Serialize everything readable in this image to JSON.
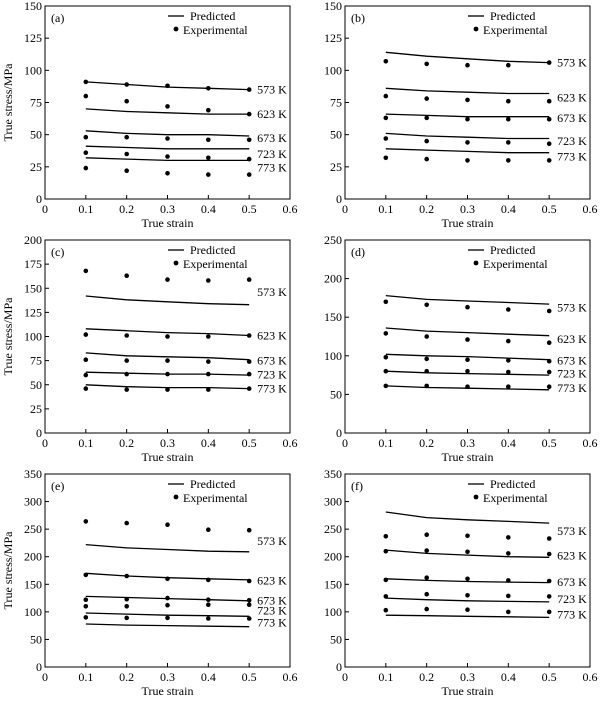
{
  "chart_data": [
    {
      "panel": "(a)",
      "type": "line",
      "xlabel": "True strain",
      "ylabel": "True stress/MPa",
      "xlim": [
        0,
        0.6
      ],
      "ylim": [
        0,
        150
      ],
      "xticks": [
        "0",
        "0.1",
        "0.2",
        "0.3",
        "0.4",
        "0.5",
        "0.6"
      ],
      "yticks": [
        "0",
        "25",
        "50",
        "75",
        "100",
        "125",
        "150"
      ],
      "legend": {
        "line_label": "Predicted",
        "dot_label": "Experimental"
      },
      "x": [
        0.1,
        0.2,
        0.3,
        0.4,
        0.5
      ],
      "series": [
        {
          "name": "573 K",
          "predicted": [
            91,
            89,
            87,
            86,
            85
          ],
          "experimental": [
            91,
            89,
            88,
            86,
            85
          ]
        },
        {
          "name": "623 K",
          "predicted": [
            70,
            68,
            67,
            66,
            66
          ],
          "experimental": [
            80,
            76,
            72,
            69,
            66
          ]
        },
        {
          "name": "673 K",
          "predicted": [
            53,
            51,
            50,
            50,
            49
          ],
          "experimental": [
            48,
            48,
            47,
            46,
            46
          ]
        },
        {
          "name": "723 K",
          "predicted": [
            41,
            40,
            39,
            39,
            39
          ],
          "experimental": [
            36,
            35,
            33,
            32,
            31
          ]
        },
        {
          "name": "773 K",
          "predicted": [
            32,
            31,
            30,
            30,
            30
          ],
          "experimental": [
            24,
            22,
            20,
            19,
            19
          ]
        }
      ]
    },
    {
      "panel": "(b)",
      "type": "line",
      "xlabel": "True strain",
      "ylabel": "",
      "xlim": [
        0,
        0.6
      ],
      "ylim": [
        0,
        150
      ],
      "xticks": [
        "0",
        "0.1",
        "0.2",
        "0.3",
        "0.4",
        "0.5",
        "0.6"
      ],
      "yticks": [
        "0",
        "25",
        "50",
        "75",
        "100",
        "125",
        "150"
      ],
      "legend": {
        "line_label": "Predicted",
        "dot_label": "Experimental"
      },
      "x": [
        0.1,
        0.2,
        0.3,
        0.4,
        0.5
      ],
      "series": [
        {
          "name": "573 K",
          "predicted": [
            114,
            111,
            109,
            107,
            106
          ],
          "experimental": [
            107,
            105,
            104,
            104,
            106
          ]
        },
        {
          "name": "623 K",
          "predicted": [
            86,
            84,
            83,
            82,
            82
          ],
          "experimental": [
            80,
            78,
            77,
            76,
            76
          ]
        },
        {
          "name": "673 K",
          "predicted": [
            66,
            65,
            64,
            64,
            64
          ],
          "experimental": [
            63,
            63,
            62,
            62,
            62
          ]
        },
        {
          "name": "723 K",
          "predicted": [
            51,
            49,
            48,
            47,
            47
          ],
          "experimental": [
            47,
            45,
            44,
            44,
            43
          ]
        },
        {
          "name": "773 K",
          "predicted": [
            39,
            38,
            37,
            36,
            36
          ],
          "experimental": [
            32,
            31,
            30,
            30,
            30
          ]
        }
      ]
    },
    {
      "panel": "(c)",
      "type": "line",
      "xlabel": "True strain",
      "ylabel": "True stress/MPa",
      "xlim": [
        0,
        0.6
      ],
      "ylim": [
        0,
        200
      ],
      "xticks": [
        "0",
        "0.1",
        "0.2",
        "0.3",
        "0.4",
        "0.5",
        "0.6"
      ],
      "yticks": [
        "0",
        "25",
        "50",
        "75",
        "100",
        "125",
        "150",
        "175",
        "200"
      ],
      "legend": {
        "line_label": "Predicted",
        "dot_label": "Experimental"
      },
      "x": [
        0.1,
        0.2,
        0.3,
        0.4,
        0.5
      ],
      "series": [
        {
          "name": "573 K",
          "predicted": [
            142,
            138,
            136,
            134,
            133
          ],
          "experimental": [
            168,
            163,
            159,
            158,
            159
          ]
        },
        {
          "name": "623 K",
          "predicted": [
            108,
            106,
            104,
            103,
            101
          ],
          "experimental": [
            102,
            101,
            100,
            100,
            101
          ]
        },
        {
          "name": "673 K",
          "predicted": [
            83,
            80,
            79,
            78,
            76
          ],
          "experimental": [
            76,
            75,
            75,
            74,
            74
          ]
        },
        {
          "name": "723 K",
          "predicted": [
            63,
            62,
            61,
            61,
            60
          ],
          "experimental": [
            60,
            61,
            61,
            61,
            61
          ]
        },
        {
          "name": "773 K",
          "predicted": [
            50,
            48,
            47,
            47,
            46
          ],
          "experimental": [
            46,
            45,
            45,
            45,
            46
          ]
        }
      ]
    },
    {
      "panel": "(d)",
      "type": "line",
      "xlabel": "True strain",
      "ylabel": "",
      "xlim": [
        0,
        0.6
      ],
      "ylim": [
        0,
        250
      ],
      "xticks": [
        "0",
        "0.1",
        "0.2",
        "0.3",
        "0.4",
        "0.5",
        "0.6"
      ],
      "yticks": [
        "0",
        "50",
        "100",
        "150",
        "200",
        "250"
      ],
      "legend": {
        "line_label": "Predicted",
        "dot_label": "Experimental"
      },
      "x": [
        0.1,
        0.2,
        0.3,
        0.4,
        0.5
      ],
      "series": [
        {
          "name": "573 K",
          "predicted": [
            178,
            173,
            171,
            169,
            167
          ],
          "experimental": [
            170,
            166,
            163,
            160,
            158
          ]
        },
        {
          "name": "623 K",
          "predicted": [
            136,
            132,
            130,
            128,
            126
          ],
          "experimental": [
            129,
            125,
            121,
            119,
            117
          ]
        },
        {
          "name": "673 K",
          "predicted": [
            102,
            100,
            99,
            97,
            95
          ],
          "experimental": [
            98,
            96,
            95,
            94,
            93
          ]
        },
        {
          "name": "723 K",
          "predicted": [
            80,
            78,
            77,
            76,
            75
          ],
          "experimental": [
            80,
            80,
            80,
            79,
            79
          ]
        },
        {
          "name": "773 K",
          "predicted": [
            61,
            59,
            58,
            57,
            56
          ],
          "experimental": [
            61,
            61,
            60,
            60,
            60
          ]
        }
      ]
    },
    {
      "panel": "(e)",
      "type": "line",
      "xlabel": "True strain",
      "ylabel": "True stress/MPa",
      "xlim": [
        0,
        0.6
      ],
      "ylim": [
        0,
        350
      ],
      "xticks": [
        "0",
        "0.1",
        "0.2",
        "0.3",
        "0.4",
        "0.5",
        "0.6"
      ],
      "yticks": [
        "0",
        "50",
        "100",
        "150",
        "200",
        "250",
        "300",
        "350"
      ],
      "legend": {
        "line_label": "Predicted",
        "dot_label": "Experimental"
      },
      "x": [
        0.1,
        0.2,
        0.3,
        0.4,
        0.5
      ],
      "series": [
        {
          "name": "573 K",
          "predicted": [
            222,
            216,
            213,
            210,
            209
          ],
          "experimental": [
            264,
            261,
            258,
            249,
            248
          ]
        },
        {
          "name": "623 K",
          "predicted": [
            170,
            165,
            162,
            160,
            158
          ],
          "experimental": [
            167,
            165,
            160,
            158,
            156
          ]
        },
        {
          "name": "673 K",
          "predicted": [
            128,
            126,
            124,
            122,
            120
          ],
          "experimental": [
            122,
            123,
            125,
            122,
            121
          ]
        },
        {
          "name": "723 K",
          "predicted": [
            98,
            96,
            94,
            93,
            92
          ],
          "experimental": [
            110,
            110,
            112,
            113,
            113
          ]
        },
        {
          "name": "773 K",
          "predicted": [
            78,
            76,
            75,
            74,
            73
          ],
          "experimental": [
            90,
            89,
            89,
            88,
            88
          ]
        }
      ]
    },
    {
      "panel": "(f)",
      "type": "line",
      "xlabel": "True strain",
      "ylabel": "",
      "xlim": [
        0,
        0.6
      ],
      "ylim": [
        0,
        350
      ],
      "xticks": [
        "0",
        "0.1",
        "0.2",
        "0.3",
        "0.4",
        "0.5",
        "0.6"
      ],
      "yticks": [
        "0",
        "50",
        "100",
        "150",
        "200",
        "250",
        "300",
        "350"
      ],
      "legend": {
        "line_label": "Predicted",
        "dot_label": "Experimental"
      },
      "x": [
        0.1,
        0.2,
        0.3,
        0.4,
        0.5
      ],
      "series": [
        {
          "name": "573 K",
          "predicted": [
            281,
            271,
            267,
            264,
            261
          ],
          "experimental": [
            237,
            240,
            238,
            235,
            233
          ]
        },
        {
          "name": "623 K",
          "predicted": [
            212,
            206,
            203,
            200,
            199
          ],
          "experimental": [
            210,
            211,
            209,
            206,
            205
          ]
        },
        {
          "name": "673 K",
          "predicted": [
            160,
            157,
            155,
            154,
            153
          ],
          "experimental": [
            158,
            162,
            160,
            157,
            156
          ]
        },
        {
          "name": "723 K",
          "predicted": [
            125,
            122,
            120,
            119,
            118
          ],
          "experimental": [
            128,
            132,
            130,
            129,
            128
          ]
        },
        {
          "name": "773 K",
          "predicted": [
            94,
            93,
            92,
            91,
            90
          ],
          "experimental": [
            103,
            105,
            104,
            100,
            100
          ]
        }
      ]
    }
  ]
}
